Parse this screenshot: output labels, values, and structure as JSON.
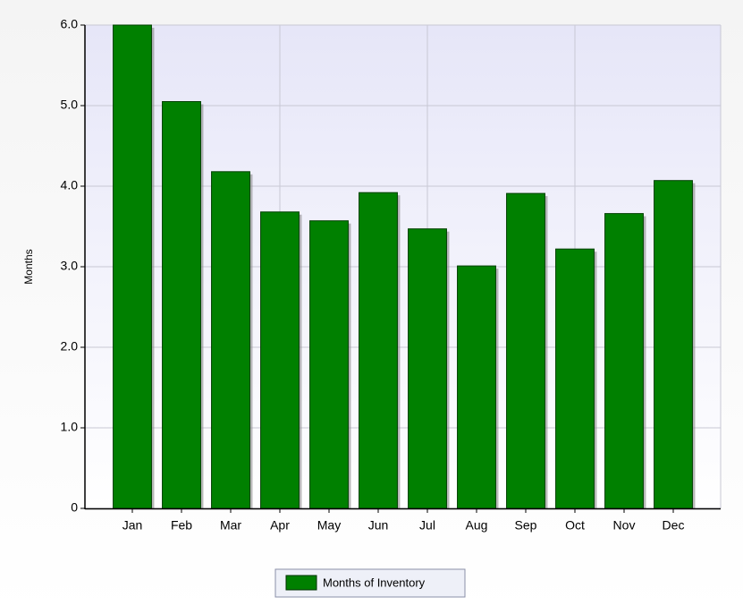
{
  "chart_data": {
    "type": "bar",
    "y_label": "Months",
    "categories": [
      "Jan",
      "Feb",
      "Mar",
      "Apr",
      "May",
      "Jun",
      "Jul",
      "Aug",
      "Sep",
      "Oct",
      "Nov",
      "Dec"
    ],
    "series": [
      {
        "name": "Months of Inventory",
        "color": "#008000",
        "values": [
          6.0,
          5.05,
          4.18,
          3.68,
          3.57,
          3.92,
          3.47,
          3.01,
          3.91,
          3.22,
          3.66,
          4.07
        ]
      }
    ],
    "ylim": [
      0,
      6
    ],
    "yticks": [
      0,
      {
        "value": 1,
        "label": "1.0"
      },
      {
        "value": 2,
        "label": "2.0"
      },
      {
        "value": 3,
        "label": "3.0"
      },
      {
        "value": 4,
        "label": "4.0"
      },
      {
        "value": 5,
        "label": "5.0"
      },
      {
        "value": 6,
        "label": "6.0"
      }
    ],
    "grid": true
  }
}
